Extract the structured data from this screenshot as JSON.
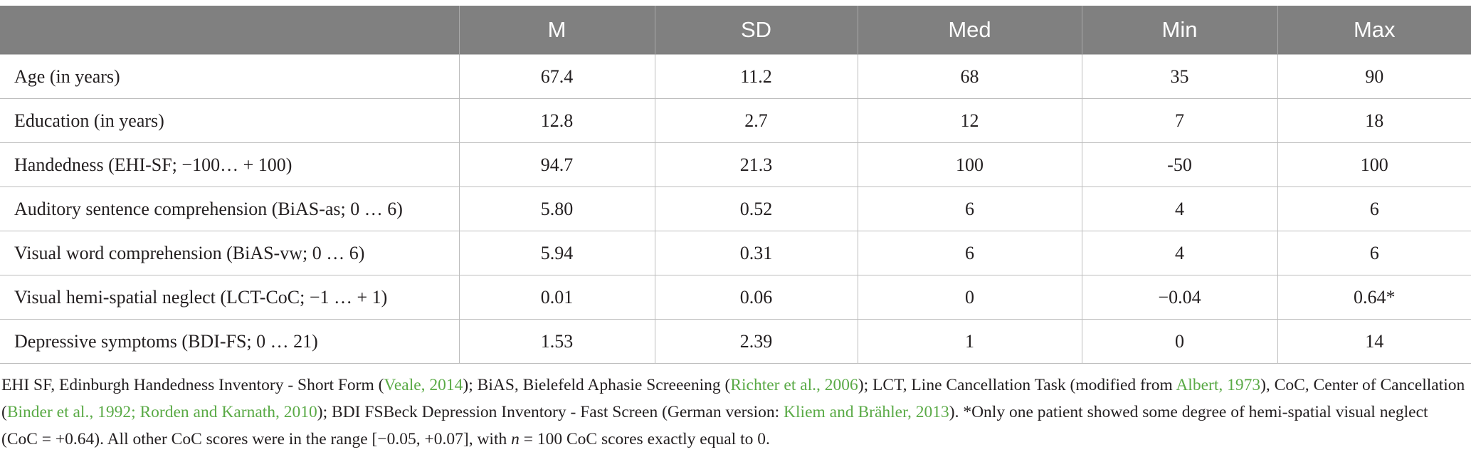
{
  "table": {
    "columns": [
      "",
      "M",
      "SD",
      "Med",
      "Min",
      "Max"
    ],
    "rows": [
      {
        "label": "Age (in years)",
        "values": [
          "67.4",
          "11.2",
          "68",
          "35",
          "90"
        ]
      },
      {
        "label": "Education (in years)",
        "values": [
          "12.8",
          "2.7",
          "12",
          "7",
          "18"
        ]
      },
      {
        "label": "Handedness (EHI-SF; −100… + 100)",
        "values": [
          "94.7",
          "21.3",
          "100",
          "-50",
          "100"
        ]
      },
      {
        "label": "Auditory sentence comprehension (BiAS-as; 0 … 6)",
        "values": [
          "5.80",
          "0.52",
          "6",
          "4",
          "6"
        ]
      },
      {
        "label": "Visual word comprehension (BiAS-vw; 0 … 6)",
        "values": [
          "5.94",
          "0.31",
          "6",
          "4",
          "6"
        ]
      },
      {
        "label": "Visual hemi-spatial neglect (LCT-CoC; −1 … + 1)",
        "values": [
          "0.01",
          "0.06",
          "0",
          "−0.04",
          "0.64*"
        ]
      },
      {
        "label": "Depressive symptoms (BDI-FS; 0 … 21)",
        "values": [
          "1.53",
          "2.39",
          "1",
          "0",
          "14"
        ]
      }
    ]
  },
  "footnote": {
    "t1": "EHI SF, Edinburgh Handedness Inventory - Short Form (",
    "r1": "Veale, 2014",
    "t2": "); BiAS, Bielefeld Aphasie Screeening (",
    "r2": "Richter et al., 2006",
    "t3": "); LCT, Line Cancellation Task (modified from ",
    "r3": "Albert, 1973",
    "t4": "), CoC, Center of Cancellation (",
    "r4": "Binder et al., 1992; Rorden and Karnath, 2010",
    "t5": "); BDI FSBeck Depression Inventory - Fast Screen (German version: ",
    "r5": "Kliem and Brähler, 2013",
    "t6": "). *Only one patient showed some degree of hemi-spatial visual neglect (CoC = +0.64). All other CoC scores were in the range [−0.05, +0.07], with ",
    "n_var": "n",
    "t7": " = 100 CoC scores exactly equal to 0."
  },
  "colors": {
    "header_bg": "#808080",
    "header_text": "#ffffff",
    "reference_link": "#5aaa46",
    "grid_line": "#bdbdbd"
  }
}
